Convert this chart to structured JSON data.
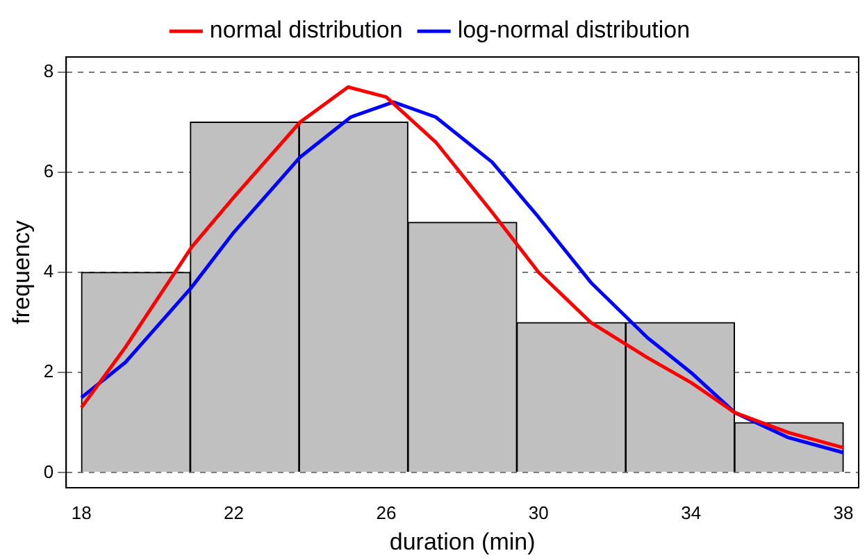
{
  "chart_data": {
    "type": "histogram",
    "xlabel": "duration (min)",
    "ylabel": "frequency",
    "bins": [
      18,
      20.857,
      23.714,
      26.571,
      29.429,
      32.286,
      35.143,
      38
    ],
    "values": [
      4,
      7,
      7,
      5,
      3,
      3,
      1
    ],
    "color": "#c0c0c0",
    "series": [
      {
        "name": "normal distribution",
        "type": "line",
        "color": "#ff0000",
        "x": [
          18,
          19.15,
          20.89,
          22,
          23.74,
          25,
          26,
          27.3,
          28.78,
          30,
          31.37,
          32.85,
          34,
          35.15,
          36.56,
          38
        ],
        "values": [
          1.3,
          2.5,
          4.5,
          5.5,
          7.0,
          7.7,
          7.5,
          6.6,
          5.2,
          4.0,
          3.0,
          2.3,
          1.8,
          1.2,
          0.8,
          0.5
        ]
      },
      {
        "name": "log-normal distribution",
        "type": "line",
        "color": "#0000ff",
        "x": [
          18,
          19.15,
          20.89,
          22,
          23.74,
          25.07,
          26.19,
          27.3,
          28.78,
          30,
          31.37,
          32.85,
          34,
          35.15,
          36.56,
          38
        ],
        "values": [
          1.5,
          2.2,
          3.7,
          4.8,
          6.3,
          7.1,
          7.4,
          7.1,
          6.2,
          5.1,
          3.8,
          2.7,
          2.0,
          1.2,
          0.7,
          0.4
        ]
      }
    ],
    "xlim": [
      17.6,
      38.4
    ],
    "ylim": [
      -0.3,
      8.3
    ],
    "xticks": [
      18,
      22,
      26,
      30,
      34,
      38
    ],
    "yticks": [
      0,
      2,
      4,
      6,
      8
    ],
    "grid": "y",
    "legend": "top",
    "marker": "none"
  }
}
